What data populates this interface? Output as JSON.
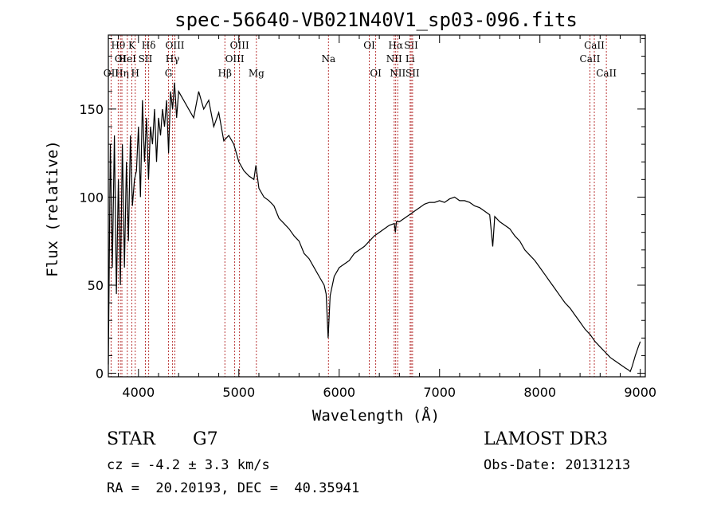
{
  "chart_data": {
    "type": "line",
    "title": "spec-56640-VB021N40V1_sp03-096.fits",
    "xlabel": "Wavelength (Å)",
    "ylabel": "Flux (relative)",
    "xlim": [
      3700,
      9050
    ],
    "ylim": [
      -2,
      192
    ],
    "x_ticks": [
      {
        "value": 4000,
        "label": "4000"
      },
      {
        "value": 5000,
        "label": "5000"
      },
      {
        "value": 6000,
        "label": "6000"
      },
      {
        "value": 7000,
        "label": "7000"
      },
      {
        "value": 8000,
        "label": "8000"
      },
      {
        "value": 9000,
        "label": "9000"
      }
    ],
    "y_ticks": [
      {
        "value": 0,
        "label": "0"
      },
      {
        "value": 50,
        "label": "50"
      },
      {
        "value": 100,
        "label": "100"
      },
      {
        "value": 150,
        "label": "150"
      }
    ],
    "x_minor_step": 200,
    "y_minor_step": 10,
    "series": [
      {
        "name": "flux",
        "x": [
          3700,
          3720,
          3740,
          3760,
          3780,
          3800,
          3820,
          3840,
          3860,
          3880,
          3900,
          3920,
          3940,
          3960,
          3980,
          4000,
          4020,
          4040,
          4060,
          4080,
          4100,
          4120,
          4140,
          4160,
          4180,
          4200,
          4220,
          4240,
          4260,
          4280,
          4300,
          4320,
          4340,
          4360,
          4380,
          4400,
          4450,
          4500,
          4550,
          4600,
          4650,
          4700,
          4750,
          4800,
          4850,
          4900,
          4950,
          5000,
          5050,
          5100,
          5150,
          5170,
          5200,
          5250,
          5300,
          5350,
          5400,
          5450,
          5500,
          5550,
          5600,
          5650,
          5700,
          5750,
          5800,
          5850,
          5870,
          5890,
          5910,
          5950,
          6000,
          6050,
          6100,
          6150,
          6200,
          6250,
          6300,
          6350,
          6400,
          6450,
          6500,
          6550,
          6560,
          6570,
          6600,
          6650,
          6700,
          6750,
          6800,
          6850,
          6900,
          6950,
          7000,
          7050,
          7100,
          7150,
          7200,
          7250,
          7300,
          7350,
          7400,
          7450,
          7500,
          7530,
          7550,
          7600,
          7650,
          7700,
          7750,
          7800,
          7850,
          7900,
          7950,
          8000,
          8050,
          8100,
          8150,
          8200,
          8250,
          8300,
          8350,
          8400,
          8450,
          8500,
          8550,
          8600,
          8650,
          8700,
          8750,
          8800,
          8850,
          8880,
          8900,
          8920,
          8950,
          8980,
          9000
        ],
        "y": [
          5,
          130,
          60,
          135,
          45,
          110,
          50,
          130,
          60,
          120,
          75,
          135,
          95,
          110,
          115,
          140,
          100,
          155,
          120,
          145,
          110,
          140,
          130,
          150,
          120,
          145,
          135,
          150,
          140,
          155,
          125,
          160,
          150,
          165,
          145,
          160,
          155,
          150,
          145,
          160,
          150,
          155,
          140,
          148,
          132,
          135,
          130,
          120,
          115,
          112,
          110,
          118,
          105,
          100,
          98,
          95,
          88,
          85,
          82,
          78,
          75,
          68,
          65,
          60,
          55,
          50,
          45,
          20,
          44,
          55,
          60,
          62,
          64,
          68,
          70,
          72,
          75,
          78,
          80,
          82,
          84,
          85,
          80,
          86,
          86,
          88,
          90,
          92,
          94,
          96,
          97,
          97,
          98,
          97,
          99,
          100,
          98,
          98,
          97,
          95,
          94,
          92,
          90,
          72,
          89,
          86,
          84,
          82,
          78,
          75,
          70,
          67,
          64,
          60,
          56,
          52,
          48,
          44,
          40,
          37,
          33,
          29,
          25,
          22,
          18,
          15,
          12,
          9,
          7,
          5,
          3,
          2,
          1,
          4,
          10,
          15,
          18
        ]
      }
    ],
    "line_markers": [
      {
        "wavelength": 3727,
        "label": "OII",
        "row": 2
      },
      {
        "wavelength": 3798,
        "label": "Hθ",
        "row": 0
      },
      {
        "wavelength": 3820,
        "label": "OI",
        "row": 1
      },
      {
        "wavelength": 3835,
        "label": "Hη",
        "row": 2
      },
      {
        "wavelength": 3889,
        "label": "HeI",
        "row": 1
      },
      {
        "wavelength": 3934,
        "label": "K",
        "row": 0
      },
      {
        "wavelength": 3968,
        "label": "H",
        "row": 2
      },
      {
        "wavelength": 4069,
        "label": "SII",
        "row": 1
      },
      {
        "wavelength": 4102,
        "label": "Hδ",
        "row": 0
      },
      {
        "wavelength": 4300,
        "label": "G",
        "row": 2
      },
      {
        "wavelength": 4340,
        "label": "Hγ",
        "row": 1
      },
      {
        "wavelength": 4363,
        "label": "OIII",
        "row": 0
      },
      {
        "wavelength": 4861,
        "label": "Hβ",
        "row": 2
      },
      {
        "wavelength": 4959,
        "label": "OIII",
        "row": 1
      },
      {
        "wavelength": 5007,
        "label": "OIII",
        "row": 0
      },
      {
        "wavelength": 5175,
        "label": "Mg",
        "row": 2
      },
      {
        "wavelength": 5893,
        "label": "Na",
        "row": 1
      },
      {
        "wavelength": 6300,
        "label": "OI",
        "row": 0
      },
      {
        "wavelength": 6364,
        "label": "OI",
        "row": 2
      },
      {
        "wavelength": 6548,
        "label": "NII",
        "row": 1
      },
      {
        "wavelength": 6563,
        "label": "Hα",
        "row": 0
      },
      {
        "wavelength": 6583,
        "label": "NII",
        "row": 2
      },
      {
        "wavelength": 6707,
        "label": "Li",
        "row": 1
      },
      {
        "wavelength": 6717,
        "label": "SII",
        "row": 0
      },
      {
        "wavelength": 6731,
        "label": "SII",
        "row": 2
      },
      {
        "wavelength": 8498,
        "label": "CaII",
        "row": 1
      },
      {
        "wavelength": 8542,
        "label": "CaII",
        "row": 0
      },
      {
        "wavelength": 8662,
        "label": "CaII",
        "row": 2
      }
    ]
  },
  "info": {
    "object_class": "STAR",
    "subclass": "G7",
    "redshift": "cz = -4.2 ± 3.3 km/s",
    "coords": "RA =  20.20193, DEC =  40.35941",
    "survey": "LAMOST DR3",
    "obs_date": "Obs-Date: 20131213"
  },
  "colors": {
    "axis": "#000000",
    "spectrum": "#000000",
    "line_markers": "#b22222",
    "background": "#ffffff"
  }
}
